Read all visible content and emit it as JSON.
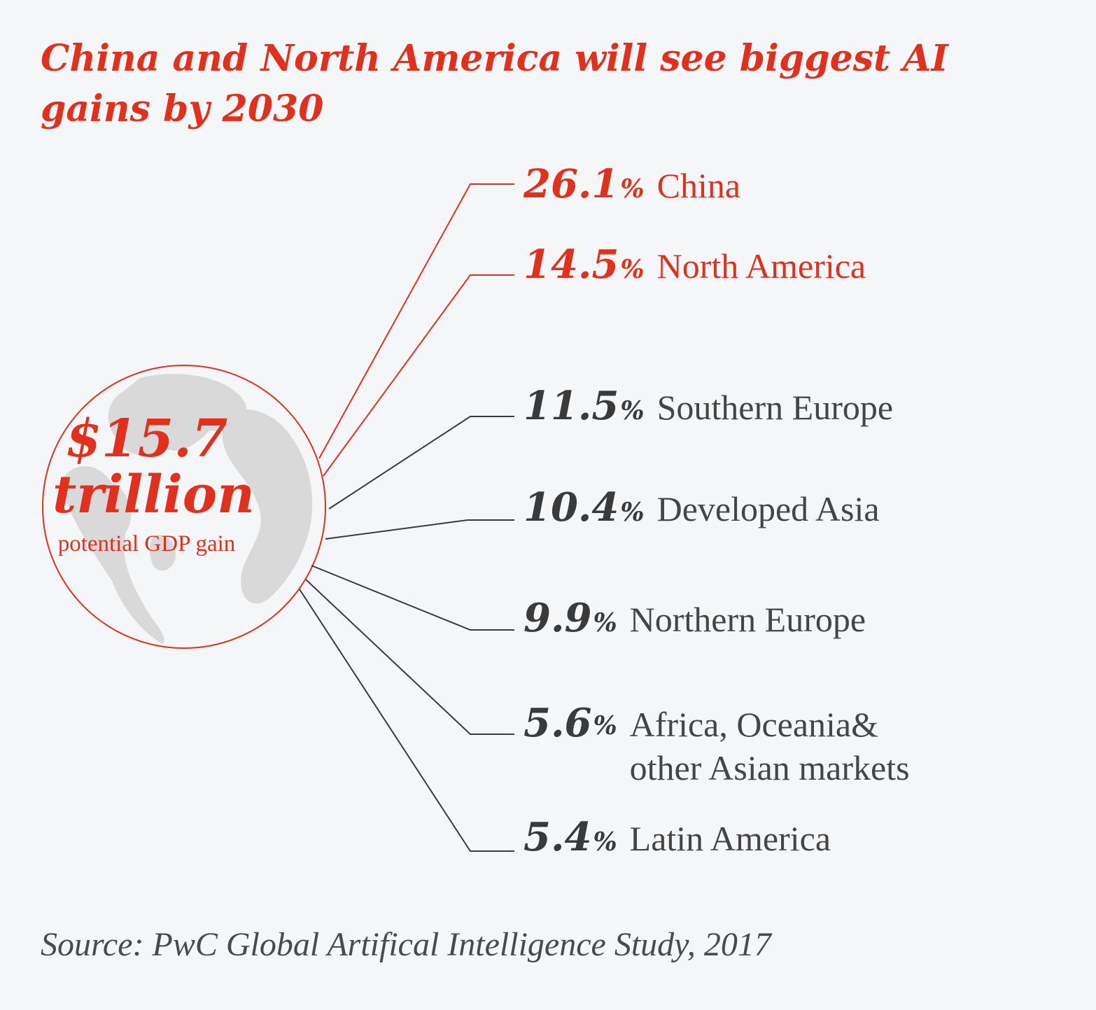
{
  "title": "China and North America will see biggest AI gains by 2030",
  "total": {
    "value": "$15.7",
    "unit": "trillion",
    "caption": "potential GDP gain"
  },
  "source": "Source: PwC Global Artifical Intelligence Study, 2017",
  "colors": {
    "highlight": "#e0301e",
    "neutral": "#3a3a3a",
    "globe": "#d9d9d9",
    "background": "#f4f6f8"
  },
  "chart_data": {
    "type": "bar",
    "title": "China and North America will see biggest AI gains by 2030",
    "categories": [
      "China",
      "North America",
      "Southern Europe",
      "Developed Asia",
      "Northern Europe",
      "Africa, Oceania& other Asian markets",
      "Latin America"
    ],
    "values": [
      26.1,
      14.5,
      11.5,
      10.4,
      9.9,
      5.6,
      5.4
    ],
    "labels": [
      "26.1",
      "14.5",
      "11.5",
      "10.4",
      "9.9",
      "5.6",
      "5.4"
    ],
    "percent_sign": "%",
    "highlighted": [
      true,
      true,
      false,
      false,
      false,
      false,
      false
    ]
  }
}
